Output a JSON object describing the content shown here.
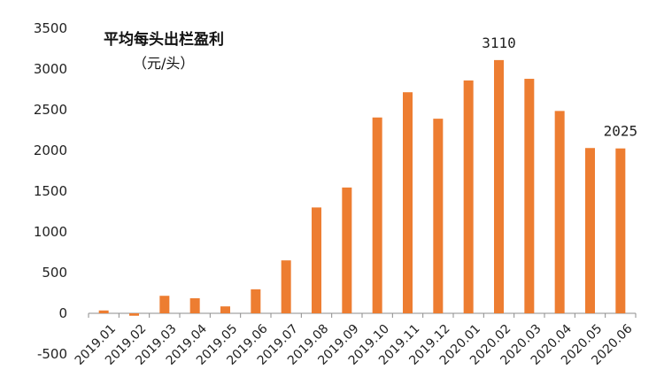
{
  "chart_data": {
    "type": "bar",
    "title": "平均每头出栏盈利",
    "subtitle": "（元/头）",
    "categories": [
      "2019.01",
      "2019.02",
      "2019.03",
      "2019.04",
      "2019.05",
      "2019.06",
      "2019.07",
      "2019.08",
      "2019.09",
      "2019.10",
      "2019.11",
      "2019.12",
      "2020.01",
      "2020.02",
      "2020.03",
      "2020.04",
      "2020.05",
      "2020.06"
    ],
    "values": [
      35,
      -30,
      215,
      185,
      85,
      295,
      650,
      1300,
      1545,
      2405,
      2715,
      2390,
      2860,
      3110,
      2880,
      2485,
      2030,
      2025
    ],
    "ylim": [
      -500,
      3500
    ],
    "yticks": [
      -500,
      0,
      500,
      1000,
      1500,
      2000,
      2500,
      3000,
      3500
    ],
    "annotations": [
      {
        "category": "2020.02",
        "text": "3110"
      },
      {
        "category": "2020.06",
        "text": "2025"
      }
    ],
    "bar_color": "#ED7D31",
    "grid": false,
    "legend": "none"
  }
}
